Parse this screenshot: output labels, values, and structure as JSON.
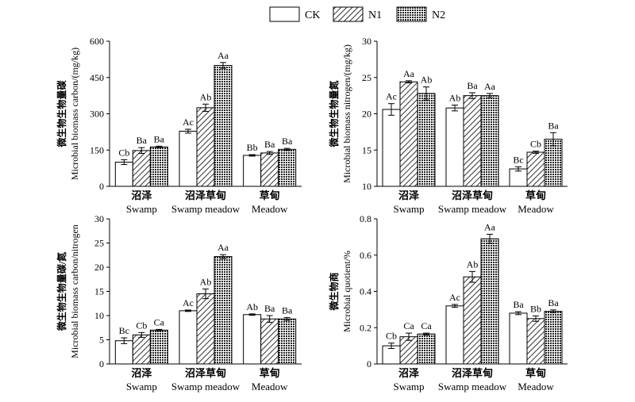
{
  "legend": [
    {
      "label": "CK",
      "pattern": "ck"
    },
    {
      "label": "N1",
      "pattern": "n1"
    },
    {
      "label": "N2",
      "pattern": "n2"
    }
  ],
  "chart_data": [
    {
      "type": "bar",
      "ylabel_cn": "微生物生物量碳",
      "ylabel_en": "Microbial biomass carbon/(mg/kg)",
      "ylim": [
        0,
        600
      ],
      "yticks": [
        0,
        150,
        300,
        450,
        600
      ],
      "categories": [
        {
          "cn": "沼泽",
          "en": "Swamp"
        },
        {
          "cn": "沼泽草甸",
          "en": "Swamp meadow"
        },
        {
          "cn": "草甸",
          "en": "Meadow"
        }
      ],
      "series": [
        {
          "name": "CK",
          "values": [
            100,
            228,
            128
          ],
          "errors": [
            10,
            8,
            3
          ],
          "labels": [
            "Cb",
            "Ac",
            "Bb"
          ]
        },
        {
          "name": "N1",
          "values": [
            148,
            325,
            138
          ],
          "errors": [
            12,
            15,
            6
          ],
          "labels": [
            "Ba",
            "Ab",
            "Ba"
          ]
        },
        {
          "name": "N2",
          "values": [
            163,
            500,
            153
          ],
          "errors": [
            3,
            12,
            4
          ],
          "labels": [
            "Ba",
            "Aa",
            "Ba"
          ]
        }
      ]
    },
    {
      "type": "bar",
      "ylabel_cn": "微生物生物量氮",
      "ylabel_en": "Microbial biomass nitrogen/(mg/kg)",
      "ylim": [
        10,
        30
      ],
      "yticks": [
        10,
        15,
        20,
        25,
        30
      ],
      "categories": [
        {
          "cn": "沼泽",
          "en": "Swamp"
        },
        {
          "cn": "沼泽草甸",
          "en": "Swamp meadow"
        },
        {
          "cn": "草甸",
          "en": "Meadow"
        }
      ],
      "series": [
        {
          "name": "CK",
          "values": [
            20.6,
            20.8,
            12.4
          ],
          "errors": [
            0.8,
            0.4,
            0.3
          ],
          "labels": [
            "Ac",
            "Ab",
            "Bc"
          ]
        },
        {
          "name": "N1",
          "values": [
            24.4,
            22.5,
            14.7
          ],
          "errors": [
            0.15,
            0.4,
            0.15
          ],
          "labels": [
            "Aa",
            "Ba",
            "Cb"
          ]
        },
        {
          "name": "N2",
          "values": [
            22.8,
            22.5,
            16.5
          ],
          "errors": [
            0.9,
            0.3,
            0.9
          ],
          "labels": [
            "Ab",
            "Aa",
            "Ba"
          ]
        }
      ]
    },
    {
      "type": "bar",
      "ylabel_cn": "微生物生物量碳/氮",
      "ylabel_en": "Microbial biomass carbon/nitrogen",
      "ylim": [
        0,
        30
      ],
      "yticks": [
        0,
        5,
        10,
        15,
        20,
        25,
        30
      ],
      "categories": [
        {
          "cn": "沼泽",
          "en": "Swamp"
        },
        {
          "cn": "沼泽草甸",
          "en": "Swamp meadow"
        },
        {
          "cn": "草甸",
          "en": "Meadow"
        }
      ],
      "series": [
        {
          "name": "CK",
          "values": [
            4.8,
            11.0,
            10.2
          ],
          "errors": [
            0.6,
            0.15,
            0.15
          ],
          "labels": [
            "Bc",
            "Ac",
            "Ab"
          ]
        },
        {
          "name": "N1",
          "values": [
            6.0,
            14.5,
            9.3
          ],
          "errors": [
            0.5,
            1.0,
            0.7
          ],
          "labels": [
            "Cb",
            "Ab",
            "Ba"
          ]
        },
        {
          "name": "N2",
          "values": [
            7.0,
            22.2,
            9.3
          ],
          "errors": [
            0.15,
            0.4,
            0.3
          ],
          "labels": [
            "Ca",
            "Aa",
            "Ba"
          ]
        }
      ]
    },
    {
      "type": "bar",
      "ylabel_cn": "微生物商",
      "ylabel_en": "Microbial quotient/%",
      "ylim": [
        0,
        0.8
      ],
      "yticks": [
        0,
        0.2,
        0.4,
        0.6,
        0.8
      ],
      "categories": [
        {
          "cn": "沼泽",
          "en": "Swamp"
        },
        {
          "cn": "沼泽草甸",
          "en": "Swamp meadow"
        },
        {
          "cn": "草甸",
          "en": "Meadow"
        }
      ],
      "series": [
        {
          "name": "CK",
          "values": [
            0.1,
            0.32,
            0.28
          ],
          "errors": [
            0.015,
            0.008,
            0.008
          ],
          "labels": [
            "Cb",
            "Ac",
            "Ba"
          ]
        },
        {
          "name": "N1",
          "values": [
            0.15,
            0.48,
            0.25
          ],
          "errors": [
            0.02,
            0.03,
            0.015
          ],
          "labels": [
            "Ca",
            "Ab",
            "Bb"
          ]
        },
        {
          "name": "N2",
          "values": [
            0.165,
            0.69,
            0.29
          ],
          "errors": [
            0.005,
            0.025,
            0.008
          ],
          "labels": [
            "Ca",
            "Aa",
            "Ba"
          ]
        }
      ]
    }
  ]
}
